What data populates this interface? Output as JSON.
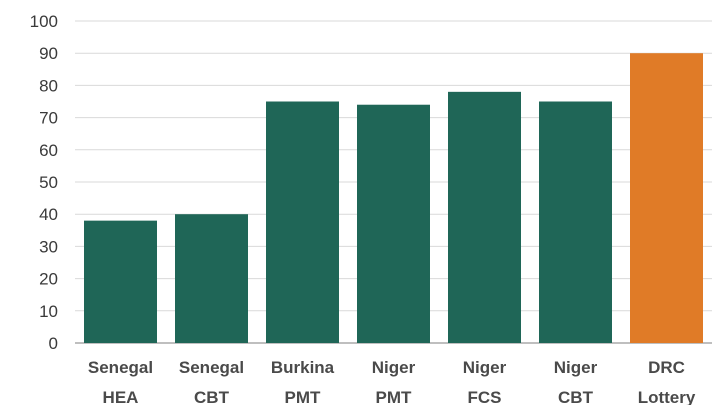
{
  "chart_data": {
    "type": "bar",
    "title": "",
    "xlabel": "",
    "ylabel": "",
    "ylim": [
      0,
      100
    ],
    "yticks": [
      0,
      10,
      20,
      30,
      40,
      50,
      60,
      70,
      80,
      90,
      100
    ],
    "grid": true,
    "categories": [
      [
        "Senegal",
        "HEA"
      ],
      [
        "Senegal",
        "CBT"
      ],
      [
        "Burkina",
        "PMT"
      ],
      [
        "Niger",
        "PMT"
      ],
      [
        "Niger",
        "FCS"
      ],
      [
        "Niger",
        "CBT"
      ],
      [
        "DRC",
        "Lottery"
      ]
    ],
    "values": [
      38,
      40,
      75,
      74,
      78,
      75,
      90
    ],
    "colors": {
      "default": "#1f6657",
      "highlight": "#e07b27"
    },
    "highlight_index": 6
  }
}
